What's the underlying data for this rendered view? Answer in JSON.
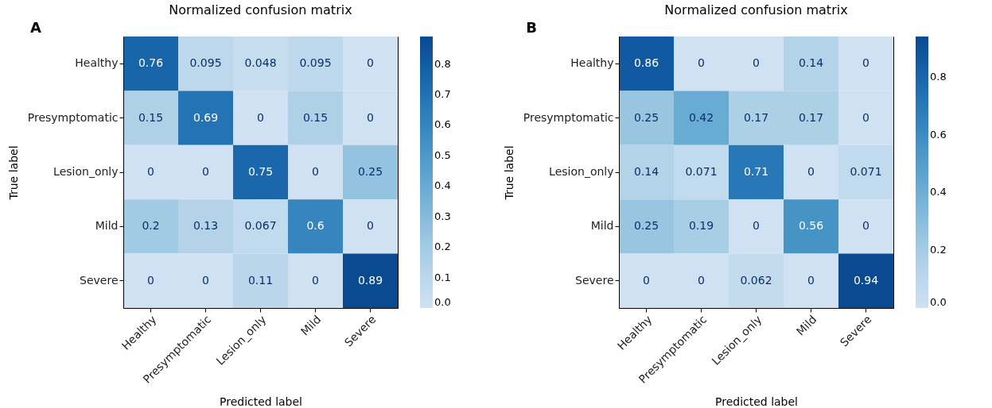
{
  "chart_data": [
    {
      "type": "heatmap",
      "title": "Normalized confusion matrix",
      "xlabel": "Predicted label",
      "ylabel": "True label",
      "annotations": [
        "A"
      ],
      "categories": [
        "Healthy",
        "Presymptomatic",
        "Lesion_only",
        "Mild",
        "Severe"
      ],
      "y_categories": [
        "Healthy",
        "Presymptomatic",
        "Lesion_only",
        "Mild",
        "Severe"
      ],
      "cells": [
        [
          0.76,
          0.095,
          0.048,
          0.095,
          0
        ],
        [
          0.15,
          0.69,
          0,
          0.15,
          0
        ],
        [
          0,
          0,
          0.75,
          0,
          0.25
        ],
        [
          0.2,
          0.13,
          0.067,
          0.6,
          0
        ],
        [
          0,
          0,
          0.11,
          0,
          0.89
        ]
      ],
      "data_labels": true,
      "clim": [
        0,
        0.89
      ],
      "cticks": [
        {
          "value": 0,
          "label": "0.0"
        },
        {
          "value": 0.1,
          "label": "0.1"
        },
        {
          "value": 0.2,
          "label": "0.2"
        },
        {
          "value": 0.3,
          "label": "0.3"
        },
        {
          "value": 0.4,
          "label": "0.4"
        },
        {
          "value": 0.5,
          "label": "0.5"
        },
        {
          "value": 0.6,
          "label": "0.6"
        },
        {
          "value": 0.7,
          "label": "0.7"
        },
        {
          "value": 0.8,
          "label": "0.8"
        }
      ]
    },
    {
      "type": "heatmap",
      "title": "Normalized confusion matrix",
      "xlabel": "Predicted label",
      "ylabel": "True label",
      "annotations": [
        "B"
      ],
      "categories": [
        "Healthy",
        "Presymptomatic",
        "Lesion_only",
        "Mild",
        "Severe"
      ],
      "y_categories": [
        "Healthy",
        "Presymptomatic",
        "Lesion_only",
        "Mild",
        "Severe"
      ],
      "cells": [
        [
          0.86,
          0,
          0,
          0.14,
          0
        ],
        [
          0.25,
          0.42,
          0.17,
          0.17,
          0
        ],
        [
          0.14,
          0.071,
          0.71,
          0,
          0.071
        ],
        [
          0.25,
          0.19,
          0,
          0.56,
          0
        ],
        [
          0,
          0,
          0.062,
          0,
          0.94
        ]
      ],
      "data_labels": true,
      "clim": [
        0,
        0.94
      ],
      "cticks": [
        {
          "value": 0,
          "label": "0.0"
        },
        {
          "value": 0.2,
          "label": "0.2"
        },
        {
          "value": 0.4,
          "label": "0.4"
        },
        {
          "value": 0.6,
          "label": "0.6"
        },
        {
          "value": 0.8,
          "label": "0.8"
        }
      ]
    }
  ]
}
